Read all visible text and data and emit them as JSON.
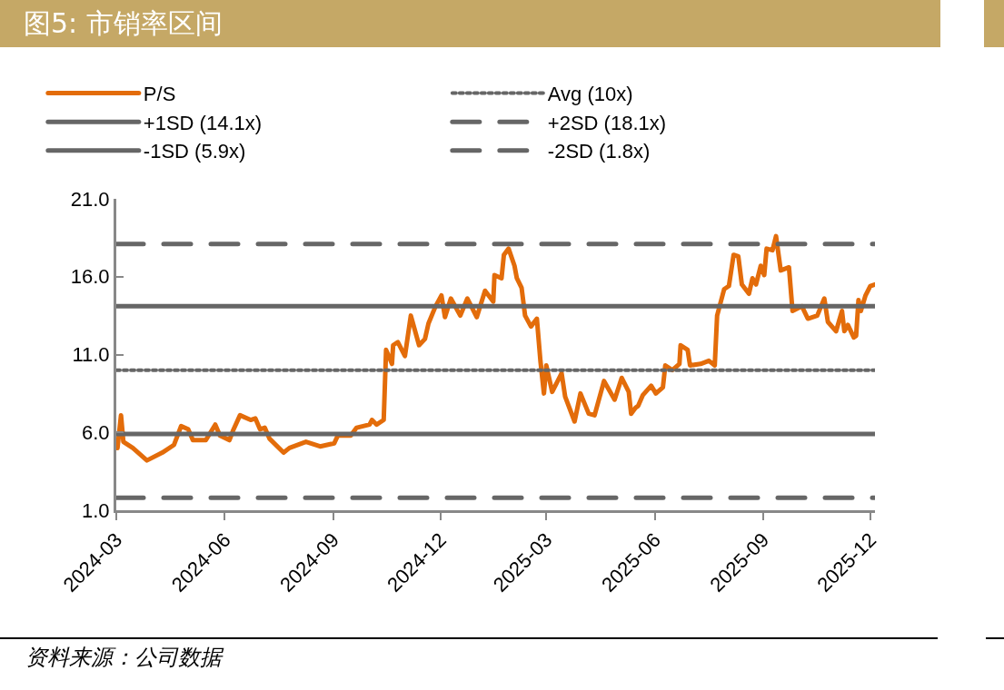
{
  "chart_data": {
    "type": "line",
    "title": "图5: 市销率区间",
    "annotations": [
      "资料来源：公司数据"
    ],
    "xlim": [
      "2024-03-01",
      "2025-12-05"
    ],
    "xticks": [
      {
        "value": "2024-03-01",
        "label": "2024-03"
      },
      {
        "value": "2024-06-01",
        "label": "2024-06"
      },
      {
        "value": "2024-09-01",
        "label": "2024-09"
      },
      {
        "value": "2024-12-01",
        "label": "2024-12"
      },
      {
        "value": "2025-03-01",
        "label": "2025-03"
      },
      {
        "value": "2025-06-01",
        "label": "2025-06"
      },
      {
        "value": "2025-09-01",
        "label": "2025-09"
      },
      {
        "value": "2025-12-01",
        "label": "2025-12"
      }
    ],
    "ylim": [
      1,
      21
    ],
    "yticks": [
      {
        "value": 1,
        "label": "1.0"
      },
      {
        "value": 6,
        "label": "6.0"
      },
      {
        "value": 11,
        "label": "11.0"
      },
      {
        "value": 16,
        "label": "16.0"
      },
      {
        "value": 21,
        "label": "21.0"
      }
    ],
    "grid": false,
    "legend": "top",
    "marker": "none",
    "series": [
      {
        "name": "P/S",
        "color": "#e36c0a",
        "line_style": "solid",
        "x": [
          "2024-03-02",
          "2024-03-05",
          "2024-03-07",
          "2024-03-15",
          "2024-03-27",
          "2024-04-09",
          "2024-04-19",
          "2024-04-25",
          "2024-05-01",
          "2024-05-05",
          "2024-05-16",
          "2024-05-24",
          "2024-05-28",
          "2024-06-05",
          "2024-06-08",
          "2024-06-14",
          "2024-06-23",
          "2024-06-27",
          "2024-07-01",
          "2024-07-05",
          "2024-07-09",
          "2024-07-21",
          "2024-07-26",
          "2024-08-09",
          "2024-08-21",
          "2024-09-02",
          "2024-09-05",
          "2024-09-16",
          "2024-09-21",
          "2024-10-02",
          "2024-10-04",
          "2024-10-08",
          "2024-10-14",
          "2024-10-16",
          "2024-10-21",
          "2024-10-22",
          "2024-10-26",
          "2024-11-01",
          "2024-11-06",
          "2024-11-13",
          "2024-11-18",
          "2024-11-21",
          "2024-11-27",
          "2024-12-02",
          "2024-12-05",
          "2024-12-10",
          "2024-12-18",
          "2024-12-24",
          "2025-01-01",
          "2025-01-08",
          "2025-01-15",
          "2025-01-16",
          "2025-01-22",
          "2025-01-24",
          "2025-01-28",
          "2025-02-02",
          "2025-02-04",
          "2025-02-08",
          "2025-02-11",
          "2025-02-16",
          "2025-02-21",
          "2025-02-24",
          "2025-02-27",
          "2025-03-01",
          "2025-03-06",
          "2025-03-14",
          "2025-03-17",
          "2025-03-25",
          "2025-03-30",
          "2025-04-06",
          "2025-04-11",
          "2025-04-19",
          "2025-04-28",
          "2025-05-04",
          "2025-05-10",
          "2025-05-12",
          "2025-05-16",
          "2025-05-18",
          "2025-05-22",
          "2025-05-29",
          "2025-06-02",
          "2025-06-08",
          "2025-06-10",
          "2025-06-16",
          "2025-06-22",
          "2025-06-23",
          "2025-06-29",
          "2025-07-01",
          "2025-07-10",
          "2025-07-17",
          "2025-07-22",
          "2025-07-24",
          "2025-07-30",
          "2025-08-03",
          "2025-08-07",
          "2025-08-11",
          "2025-08-14",
          "2025-08-20",
          "2025-08-23",
          "2025-08-26",
          "2025-08-30",
          "2025-09-02",
          "2025-09-04",
          "2025-09-09",
          "2025-09-12",
          "2025-09-16",
          "2025-09-23",
          "2025-09-26",
          "2025-10-04",
          "2025-10-09",
          "2025-10-17",
          "2025-10-23",
          "2025-10-26",
          "2025-11-02",
          "2025-11-07",
          "2025-11-09",
          "2025-11-12",
          "2025-11-17",
          "2025-11-19",
          "2025-11-21",
          "2025-11-23",
          "2025-11-27",
          "2025-12-01",
          "2025-12-05"
        ],
        "values": [
          5.0,
          7.1,
          5.4,
          5.0,
          4.2,
          4.7,
          5.2,
          6.4,
          6.2,
          5.5,
          5.5,
          6.5,
          5.8,
          5.5,
          6.1,
          7.1,
          6.8,
          6.9,
          6.2,
          6.3,
          5.6,
          4.7,
          5.0,
          5.4,
          5.1,
          5.3,
          5.8,
          5.8,
          6.3,
          6.5,
          6.8,
          6.5,
          6.8,
          11.3,
          10.4,
          11.6,
          11.8,
          10.9,
          13.5,
          11.6,
          12.0,
          13.0,
          14.1,
          14.8,
          13.4,
          14.6,
          13.5,
          14.6,
          13.4,
          15.1,
          14.4,
          16.1,
          15.9,
          17.4,
          17.8,
          16.7,
          15.9,
          15.3,
          13.5,
          12.8,
          13.3,
          10.6,
          8.5,
          10.3,
          8.6,
          9.8,
          8.3,
          6.7,
          8.5,
          7.2,
          7.1,
          9.3,
          8.1,
          9.5,
          8.6,
          7.2,
          7.6,
          7.7,
          8.4,
          9.0,
          8.5,
          8.9,
          10.3,
          10.0,
          10.4,
          11.6,
          11.3,
          10.3,
          10.4,
          10.6,
          10.3,
          13.5,
          15.2,
          15.4,
          17.4,
          17.3,
          15.5,
          14.9,
          15.9,
          15.5,
          16.7,
          16.1,
          17.8,
          17.7,
          18.6,
          16.4,
          16.6,
          13.8,
          14.1,
          13.3,
          13.5,
          14.6,
          13.1,
          12.5,
          13.8,
          12.5,
          12.9,
          12.1,
          12.2,
          14.5,
          13.8,
          14.8,
          15.4,
          15.5
        ]
      },
      {
        "name": "Avg (10x)",
        "color": "#666666",
        "line_style": "dotted",
        "x": [
          "2024-03-01",
          "2025-12-05"
        ],
        "values": [
          10,
          10
        ]
      },
      {
        "name": "+1SD (14.1x)",
        "color": "#666666",
        "line_style": "solid",
        "x": [
          "2024-03-01",
          "2025-12-05"
        ],
        "values": [
          14.1,
          14.1
        ]
      },
      {
        "name": "+2SD (18.1x)",
        "color": "#666666",
        "line_style": "dashed",
        "x": [
          "2024-03-01",
          "2025-12-05"
        ],
        "values": [
          18.1,
          18.1
        ]
      },
      {
        "name": "-1SD (5.9x)",
        "color": "#666666",
        "line_style": "solid",
        "x": [
          "2024-03-01",
          "2025-12-05"
        ],
        "values": [
          5.9,
          5.9
        ]
      },
      {
        "name": "-2SD (1.8x)",
        "color": "#666666",
        "line_style": "dashed",
        "x": [
          "2024-03-01",
          "2025-12-05"
        ],
        "values": [
          1.8,
          1.8
        ]
      }
    ]
  }
}
